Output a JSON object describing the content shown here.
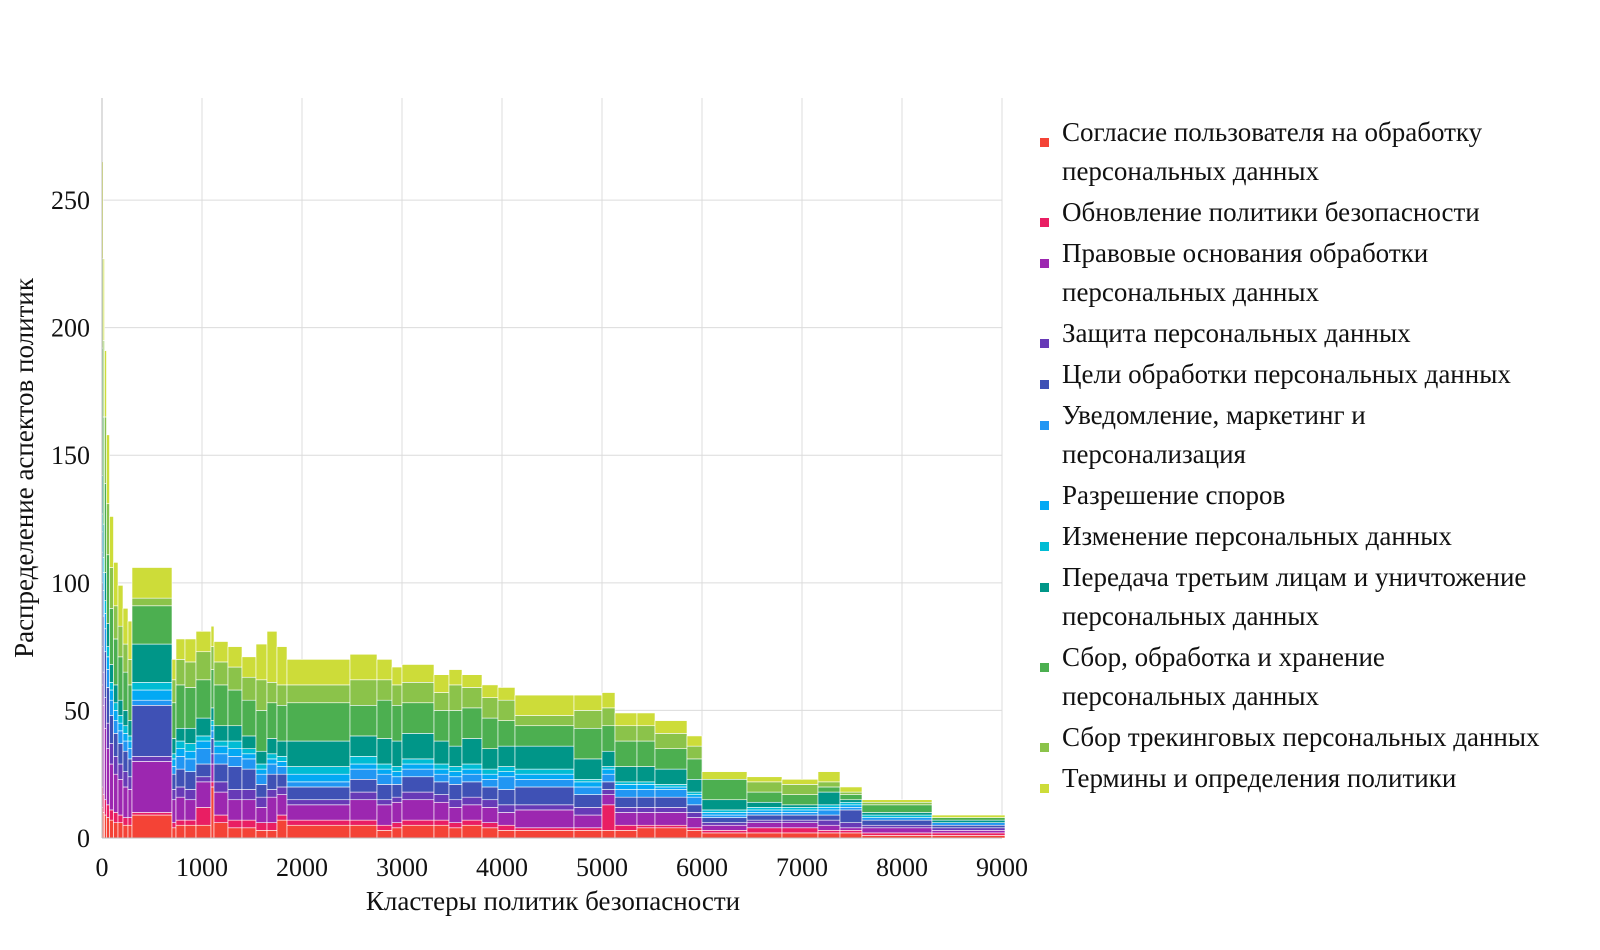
{
  "chart_data": {
    "type": "bar",
    "subtype": "variable-width stacked bar (marimekko)",
    "xlabel": "Кластеры политик безопасности",
    "ylabel": "Распределение аспектов политик",
    "xlim": [
      0,
      9000
    ],
    "ylim": [
      0,
      290
    ],
    "xticks": [
      "0",
      "1000",
      "2000",
      "3000",
      "4000",
      "5000",
      "6000",
      "7000",
      "8000",
      "9000"
    ],
    "yticks": [
      "0",
      "50",
      "100",
      "150",
      "200",
      "250"
    ],
    "grid": true,
    "legend_position": "right",
    "series": [
      {
        "name": "Согласие пользователя на обработку персональных данных",
        "color": "#F44336"
      },
      {
        "name": "Обновление политики безопасности",
        "color": "#E91E63"
      },
      {
        "name": "Правовые основания обработки персональных данных",
        "color": "#9C27B0"
      },
      {
        "name": "Защита персональных данных",
        "color": "#673AB7"
      },
      {
        "name": "Цели обработки персональных данных",
        "color": "#3F51B5"
      },
      {
        "name": "Уведомление, маркетинг и персонализация",
        "color": "#2196F3"
      },
      {
        "name": "Разрешение споров",
        "color": "#03A9F4"
      },
      {
        "name": "Изменение персональных данных",
        "color": "#00BCD4"
      },
      {
        "name": "Передача третьим лицам и уничтожение персональных данных",
        "color": "#009688"
      },
      {
        "name": "Сбор, обработка и хранение персональных данных",
        "color": "#4CAF50"
      },
      {
        "name": "Сбор трекинговых персональных данных",
        "color": "#8BC34A"
      },
      {
        "name": "Термины и определения политики",
        "color": "#CDDC39"
      }
    ],
    "bars": [
      {
        "x0": 0,
        "x1": 12,
        "values": [
          12,
          8,
          40,
          15,
          25,
          12,
          8,
          7,
          15,
          50,
          35,
          38
        ]
      },
      {
        "x0": 12,
        "x1": 25,
        "values": [
          10,
          7,
          35,
          13,
          22,
          10,
          7,
          6,
          13,
          42,
          30,
          32
        ]
      },
      {
        "x0": 25,
        "x1": 45,
        "values": [
          9,
          6,
          28,
          12,
          18,
          9,
          6,
          5,
          11,
          35,
          26,
          26
        ]
      },
      {
        "x0": 45,
        "x1": 75,
        "values": [
          8,
          5,
          22,
          10,
          14,
          7,
          5,
          4,
          9,
          27,
          20,
          27
        ]
      },
      {
        "x0": 75,
        "x1": 115,
        "values": [
          7,
          4,
          18,
          8,
          11,
          6,
          4,
          3,
          7,
          22,
          16,
          20
        ]
      },
      {
        "x0": 115,
        "x1": 160,
        "values": [
          6,
          4,
          15,
          7,
          9,
          5,
          4,
          3,
          7,
          18,
          13,
          17
        ]
      },
      {
        "x0": 160,
        "x1": 210,
        "values": [
          6,
          3,
          14,
          6,
          8,
          5,
          3,
          3,
          6,
          17,
          12,
          16
        ]
      },
      {
        "x0": 210,
        "x1": 260,
        "values": [
          5,
          3,
          12,
          6,
          8,
          4,
          3,
          3,
          6,
          15,
          11,
          14
        ]
      },
      {
        "x0": 260,
        "x1": 300,
        "values": [
          5,
          3,
          11,
          5,
          7,
          4,
          3,
          2,
          6,
          14,
          10,
          15
        ]
      },
      {
        "x0": 300,
        "x1": 700,
        "values": [
          9,
          1,
          20,
          2,
          20,
          2,
          4,
          3,
          15,
          15,
          3,
          12
        ]
      },
      {
        "x0": 700,
        "x1": 740,
        "values": [
          4,
          2,
          9,
          4,
          6,
          3,
          3,
          2,
          6,
          14,
          9,
          8
        ]
      },
      {
        "x0": 740,
        "x1": 830,
        "values": [
          5,
          2,
          9,
          4,
          7,
          5,
          3,
          3,
          5,
          17,
          10,
          8
        ]
      },
      {
        "x0": 830,
        "x1": 940,
        "values": [
          5,
          2,
          8,
          4,
          7,
          5,
          3,
          3,
          6,
          16,
          10,
          9
        ]
      },
      {
        "x0": 940,
        "x1": 1090,
        "values": [
          5,
          7,
          10,
          2,
          5,
          6,
          3,
          2,
          7,
          15,
          11,
          8
        ]
      },
      {
        "x0": 1090,
        "x1": 1120,
        "values": [
          20,
          2,
          7,
          4,
          6,
          3,
          2,
          2,
          5,
          15,
          9,
          8
        ]
      },
      {
        "x0": 1120,
        "x1": 1260,
        "values": [
          6,
          3,
          9,
          4,
          7,
          4,
          3,
          2,
          6,
          16,
          9,
          8
        ]
      },
      {
        "x0": 1260,
        "x1": 1400,
        "values": [
          4,
          3,
          8,
          4,
          9,
          4,
          3,
          3,
          6,
          14,
          9,
          8
        ]
      },
      {
        "x0": 1400,
        "x1": 1540,
        "values": [
          4,
          3,
          8,
          4,
          8,
          4,
          2,
          2,
          5,
          14,
          9,
          8
        ]
      },
      {
        "x0": 1540,
        "x1": 1650,
        "values": [
          3,
          3,
          6,
          4,
          5,
          4,
          2,
          2,
          5,
          16,
          12,
          14
        ]
      },
      {
        "x0": 1650,
        "x1": 1750,
        "values": [
          3,
          3,
          10,
          3,
          6,
          4,
          2,
          2,
          6,
          14,
          8,
          20
        ]
      },
      {
        "x0": 1750,
        "x1": 1850,
        "values": [
          7,
          2,
          8,
          3,
          5,
          3,
          2,
          2,
          6,
          14,
          8,
          15
        ]
      },
      {
        "x0": 1850,
        "x1": 2480,
        "values": [
          5,
          2,
          6,
          2,
          5,
          2,
          3,
          3,
          10,
          15,
          7,
          10
        ]
      },
      {
        "x0": 2480,
        "x1": 2750,
        "values": [
          5,
          2,
          8,
          3,
          5,
          4,
          2,
          3,
          8,
          12,
          10,
          10
        ]
      },
      {
        "x0": 2750,
        "x1": 2900,
        "values": [
          3,
          2,
          8,
          2,
          6,
          4,
          2,
          2,
          10,
          15,
          8,
          8
        ]
      },
      {
        "x0": 2900,
        "x1": 3000,
        "values": [
          4,
          2,
          8,
          2,
          5,
          3,
          2,
          2,
          10,
          14,
          8,
          7
        ]
      },
      {
        "x0": 3000,
        "x1": 3320,
        "values": [
          5,
          2,
          8,
          3,
          6,
          3,
          2,
          2,
          10,
          12,
          8,
          7
        ]
      },
      {
        "x0": 3320,
        "x1": 3470,
        "values": [
          5,
          2,
          7,
          3,
          5,
          3,
          2,
          2,
          9,
          12,
          7,
          7
        ]
      },
      {
        "x0": 3470,
        "x1": 3600,
        "values": [
          4,
          2,
          6,
          3,
          6,
          3,
          2,
          2,
          8,
          14,
          10,
          6
        ]
      },
      {
        "x0": 3600,
        "x1": 3800,
        "values": [
          5,
          2,
          6,
          3,
          6,
          3,
          2,
          2,
          10,
          12,
          8,
          5
        ]
      },
      {
        "x0": 3800,
        "x1": 3960,
        "values": [
          4,
          2,
          6,
          3,
          5,
          3,
          2,
          2,
          8,
          12,
          8,
          5
        ]
      },
      {
        "x0": 3960,
        "x1": 4130,
        "values": [
          3,
          2,
          5,
          3,
          6,
          5,
          2,
          2,
          8,
          10,
          8,
          5
        ]
      },
      {
        "x0": 4130,
        "x1": 4720,
        "values": [
          3,
          1,
          7,
          2,
          7,
          3,
          2,
          2,
          9,
          8,
          4,
          8
        ]
      },
      {
        "x0": 4720,
        "x1": 5000,
        "values": [
          3,
          1,
          5,
          3,
          5,
          3,
          2,
          1,
          8,
          12,
          7,
          6
        ]
      },
      {
        "x0": 5000,
        "x1": 5130,
        "values": [
          3,
          10,
          4,
          2,
          3,
          3,
          2,
          1,
          6,
          10,
          7,
          6
        ]
      },
      {
        "x0": 5130,
        "x1": 5350,
        "values": [
          3,
          2,
          5,
          2,
          4,
          3,
          2,
          1,
          6,
          10,
          6,
          5
        ]
      },
      {
        "x0": 5350,
        "x1": 5530,
        "values": [
          4,
          1,
          5,
          2,
          4,
          3,
          2,
          1,
          6,
          10,
          6,
          5
        ]
      },
      {
        "x0": 5530,
        "x1": 5850,
        "values": [
          4,
          1,
          5,
          2,
          4,
          3,
          1,
          1,
          6,
          8,
          6,
          5
        ]
      },
      {
        "x0": 5850,
        "x1": 6000,
        "values": [
          3,
          1,
          4,
          2,
          3,
          3,
          1,
          1,
          5,
          8,
          5,
          4
        ]
      },
      {
        "x0": 6000,
        "x1": 6450,
        "values": [
          2,
          1,
          2,
          1,
          2,
          1,
          1,
          1,
          4,
          8,
          0,
          3
        ]
      },
      {
        "x0": 6450,
        "x1": 6800,
        "values": [
          2,
          2,
          2,
          1,
          2,
          1,
          1,
          1,
          2,
          4,
          4,
          2
        ]
      },
      {
        "x0": 6800,
        "x1": 7160,
        "values": [
          2,
          2,
          2,
          1,
          2,
          1,
          1,
          1,
          1,
          4,
          4,
          2
        ]
      },
      {
        "x0": 7160,
        "x1": 7380,
        "values": [
          2,
          1,
          2,
          2,
          2,
          2,
          1,
          1,
          5,
          2,
          2,
          4
        ]
      },
      {
        "x0": 7380,
        "x1": 7600,
        "values": [
          2,
          1,
          1,
          2,
          5,
          1,
          1,
          1,
          1,
          2,
          1,
          2
        ]
      },
      {
        "x0": 7600,
        "x1": 8300,
        "values": [
          1,
          1,
          2,
          1,
          2,
          1,
          0,
          1,
          1,
          3,
          1,
          1
        ]
      },
      {
        "x0": 8300,
        "x1": 9030,
        "values": [
          1,
          1,
          1,
          1,
          1,
          1,
          0,
          0,
          1,
          1,
          0,
          1
        ]
      }
    ]
  }
}
